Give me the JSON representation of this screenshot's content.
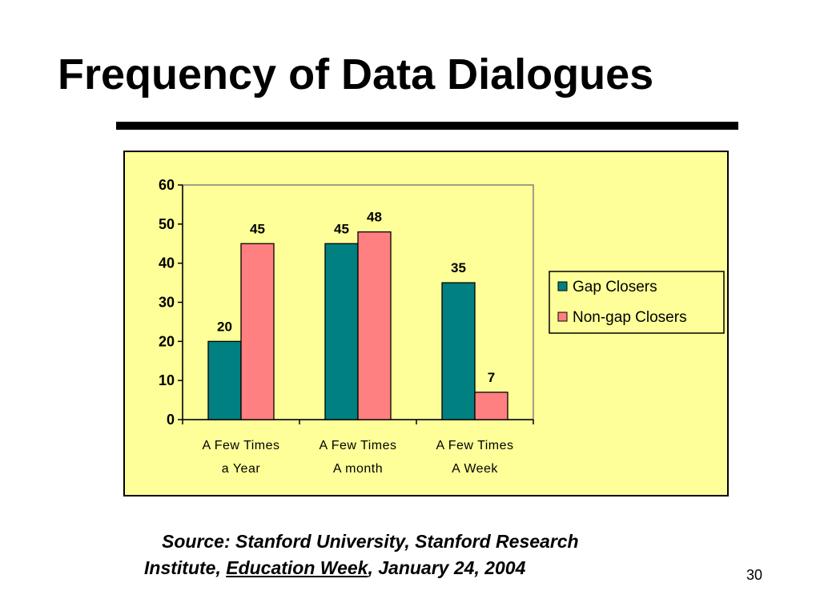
{
  "slide": {
    "title": "Frequency of Data Dialogues",
    "source_line1": "Source: Stanford University, Stanford Research",
    "source_line2_a": "Institute, ",
    "source_line2_b": "Education Week",
    "source_line2_c": ", January 24, 2004",
    "page_number": "30"
  },
  "colors": {
    "panel_bg": "#ffff99",
    "gap_closers": "#008080",
    "non_gap_closers": "#ff8080"
  },
  "chart_data": {
    "type": "bar",
    "categories": [
      [
        "A Few Times",
        "a Year"
      ],
      [
        "A Few Times",
        "A month"
      ],
      [
        "A Few Times",
        "A Week"
      ]
    ],
    "series": [
      {
        "name": "Gap Closers",
        "values": [
          20,
          45,
          35
        ],
        "color": "#008080"
      },
      {
        "name": "Non-gap Closers",
        "values": [
          45,
          48,
          7
        ],
        "color": "#ff8080"
      }
    ],
    "title": "",
    "xlabel": "",
    "ylabel": "",
    "ylim": [
      0,
      60
    ],
    "yticks": [
      0,
      10,
      20,
      30,
      40,
      50,
      60
    ],
    "data_labels": true,
    "grid": false,
    "legend_position": "right"
  }
}
